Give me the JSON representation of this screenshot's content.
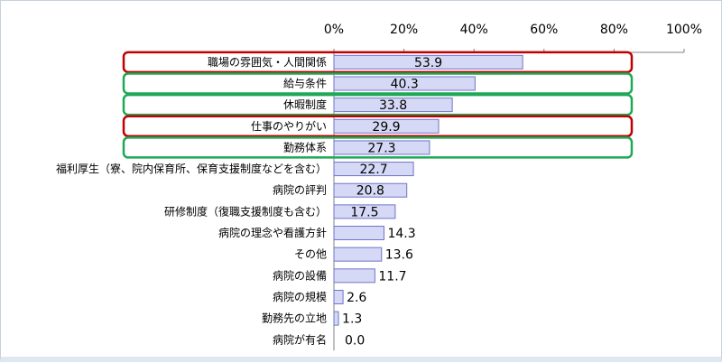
{
  "chart_data": {
    "type": "bar",
    "orientation": "horizontal",
    "title": "",
    "xlabel": "",
    "ylabel": "",
    "xlim": [
      0,
      100
    ],
    "x_ticks": [
      "0%",
      "20%",
      "40%",
      "60%",
      "80%",
      "100%"
    ],
    "axis_position": "top",
    "grid": false,
    "categories": [
      "職場の雰囲気・人間関係",
      "給与条件",
      "休暇制度",
      "仕事のやりがい",
      "勤務体系",
      "福利厚生（寮、院内保育所、保育支援制度などを含む）",
      "病院の評判",
      "研修制度（復職支援制度も含む）",
      "病院の理念や看護方針",
      "その他",
      "病院の設備",
      "病院の規模",
      "勤務先の立地",
      "病院が有名"
    ],
    "values": [
      53.9,
      40.3,
      33.8,
      29.9,
      27.3,
      22.7,
      20.8,
      17.5,
      14.3,
      13.6,
      11.7,
      2.6,
      1.3,
      0.0
    ],
    "value_labels": [
      "53.9",
      "40.3",
      "33.8",
      "29.9",
      "27.3",
      "22.7",
      "20.8",
      "17.5",
      "14.3",
      "13.6",
      "11.7",
      "2.6",
      "1.3",
      "0.0"
    ],
    "highlights": [
      {
        "category_index": 0,
        "color": "#c00000"
      },
      {
        "category_index": 1,
        "color": "#1fa855"
      },
      {
        "category_index": 2,
        "color": "#1fa855"
      },
      {
        "category_index": 3,
        "color": "#c00000"
      },
      {
        "category_index": 4,
        "color": "#1fa855"
      }
    ],
    "colors": {
      "bar_fill": "#d6d9f5",
      "bar_stroke": "#6f74c8",
      "axis": "#808080",
      "text": "#000000"
    }
  }
}
